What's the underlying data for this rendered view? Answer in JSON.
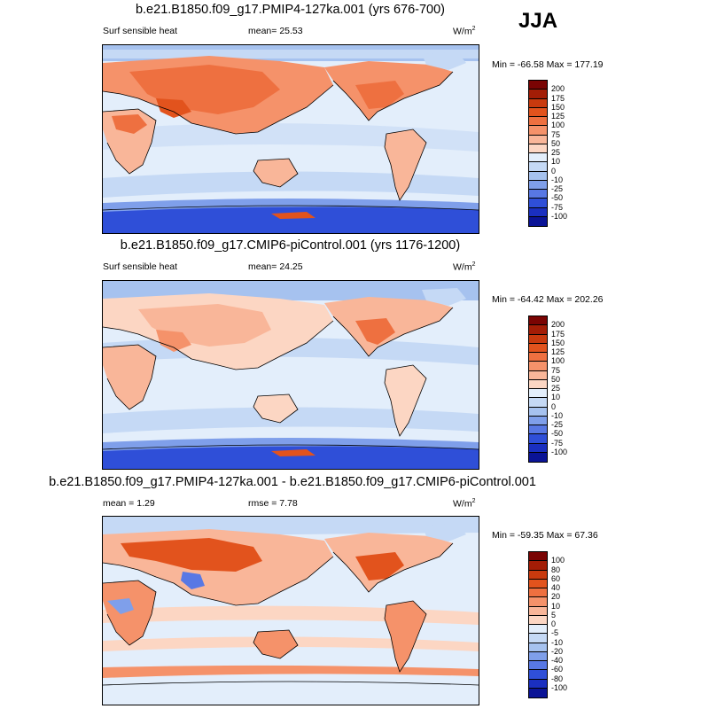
{
  "season": "JJA",
  "panels": [
    {
      "title": "b.e21.B1850.f09_g17.PMIP4-127ka.001 (yrs 676-700)",
      "left_label": "Surf sensible heat",
      "center_label": "mean=  25.53",
      "units": "W/m",
      "units_sup": "2",
      "minmax": "Min = -66.58 Max = 177.19",
      "colorbar": {
        "labels": [
          "200",
          "175",
          "150",
          "125",
          "100",
          "75",
          "50",
          "25",
          "10",
          "0",
          "-10",
          "-25",
          "-50",
          "-75",
          "-100"
        ],
        "colors": [
          "#7a0403",
          "#a31d06",
          "#c93a0e",
          "#e2531d",
          "#ee7040",
          "#f5926a",
          "#f9b699",
          "#fcd6c3",
          "#e3eefb",
          "#c5d9f5",
          "#a6c2ef",
          "#7f9fea",
          "#5878e4",
          "#2f4fd8",
          "#1a2fc0",
          "#0a1396"
        ]
      }
    },
    {
      "title": "b.e21.B1850.f09_g17.CMIP6-piControl.001 (yrs 1176-1200)",
      "left_label": "Surf sensible heat",
      "center_label": "mean=  24.25",
      "units": "W/m",
      "units_sup": "2",
      "minmax": "Min = -64.42 Max = 202.26",
      "colorbar": {
        "labels": [
          "200",
          "175",
          "150",
          "125",
          "100",
          "75",
          "50",
          "25",
          "10",
          "0",
          "-10",
          "-25",
          "-50",
          "-75",
          "-100"
        ],
        "colors": [
          "#7a0403",
          "#a31d06",
          "#c93a0e",
          "#e2531d",
          "#ee7040",
          "#f5926a",
          "#f9b699",
          "#fcd6c3",
          "#e3eefb",
          "#c5d9f5",
          "#a6c2ef",
          "#7f9fea",
          "#5878e4",
          "#2f4fd8",
          "#1a2fc0",
          "#0a1396"
        ]
      }
    },
    {
      "title": "b.e21.B1850.f09_g17.PMIP4-127ka.001 - b.e21.B1850.f09_g17.CMIP6-piControl.001",
      "left_label": "mean =   1.29",
      "center_label": "rmse =   7.78",
      "units": "W/m",
      "units_sup": "2",
      "minmax": "Min = -59.35 Max =  67.36",
      "colorbar": {
        "labels": [
          "100",
          "80",
          "60",
          "40",
          "20",
          "10",
          "5",
          "0",
          "-5",
          "-10",
          "-20",
          "-40",
          "-60",
          "-80",
          "-100"
        ],
        "colors": [
          "#7a0403",
          "#a31d06",
          "#c93a0e",
          "#e2531d",
          "#ee7040",
          "#f5926a",
          "#f9b699",
          "#fcd6c3",
          "#e3eefb",
          "#c5d9f5",
          "#a6c2ef",
          "#7f9fea",
          "#5878e4",
          "#2f4fd8",
          "#1a2fc0",
          "#0a1396"
        ]
      }
    }
  ]
}
